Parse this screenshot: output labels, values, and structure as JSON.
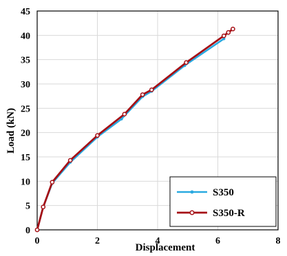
{
  "chart_data": {
    "type": "line",
    "title": "",
    "xlabel": "Displacement",
    "ylabel": "Load (kN)",
    "xlim": [
      0,
      8
    ],
    "ylim": [
      0,
      45
    ],
    "xticks": [
      0,
      2,
      4,
      6,
      8
    ],
    "yticks": [
      0,
      5,
      10,
      15,
      20,
      25,
      30,
      35,
      40,
      45
    ],
    "grid": true,
    "legend_position": "bottom-right",
    "series": [
      {
        "name": "S350",
        "color": "#29a9e0",
        "x": [
          0,
          0.2,
          0.5,
          1.1,
          2.0,
          2.8,
          3.5,
          3.8,
          4.9,
          6.2
        ],
        "y": [
          0,
          4.7,
          9.6,
          13.9,
          19.1,
          22.8,
          27.4,
          28.5,
          33.8,
          39.3
        ]
      },
      {
        "name": "S350-R",
        "color": "#a50f15",
        "x": [
          0,
          0.2,
          0.5,
          1.1,
          2.0,
          2.9,
          3.5,
          3.8,
          4.95,
          6.2,
          6.35,
          6.5
        ],
        "y": [
          0,
          4.7,
          9.8,
          14.3,
          19.4,
          23.8,
          27.8,
          28.8,
          34.4,
          39.9,
          40.6,
          41.3
        ]
      }
    ]
  }
}
